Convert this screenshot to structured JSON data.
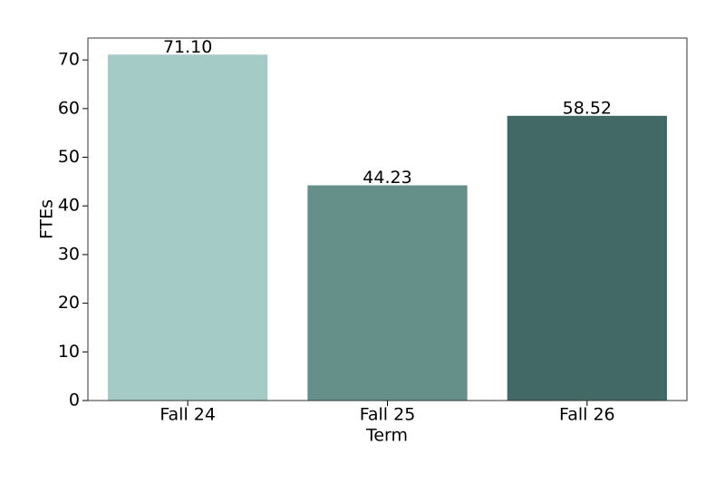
{
  "chart_data": {
    "type": "bar",
    "x_label": "Term",
    "y_label": "FTEs",
    "categories": [
      "Fall 24",
      "Fall 25",
      "Fall 26"
    ],
    "values": [
      71.1,
      44.23,
      58.52
    ],
    "value_labels": [
      "71.10",
      "44.23",
      "58.52"
    ],
    "colors": [
      "#a5cbc7",
      "#659089",
      "#426965"
    ],
    "ylim": [
      0,
      74.5
    ],
    "yticks": [
      0,
      10,
      20,
      30,
      40,
      50,
      60,
      70
    ],
    "grid": false
  }
}
